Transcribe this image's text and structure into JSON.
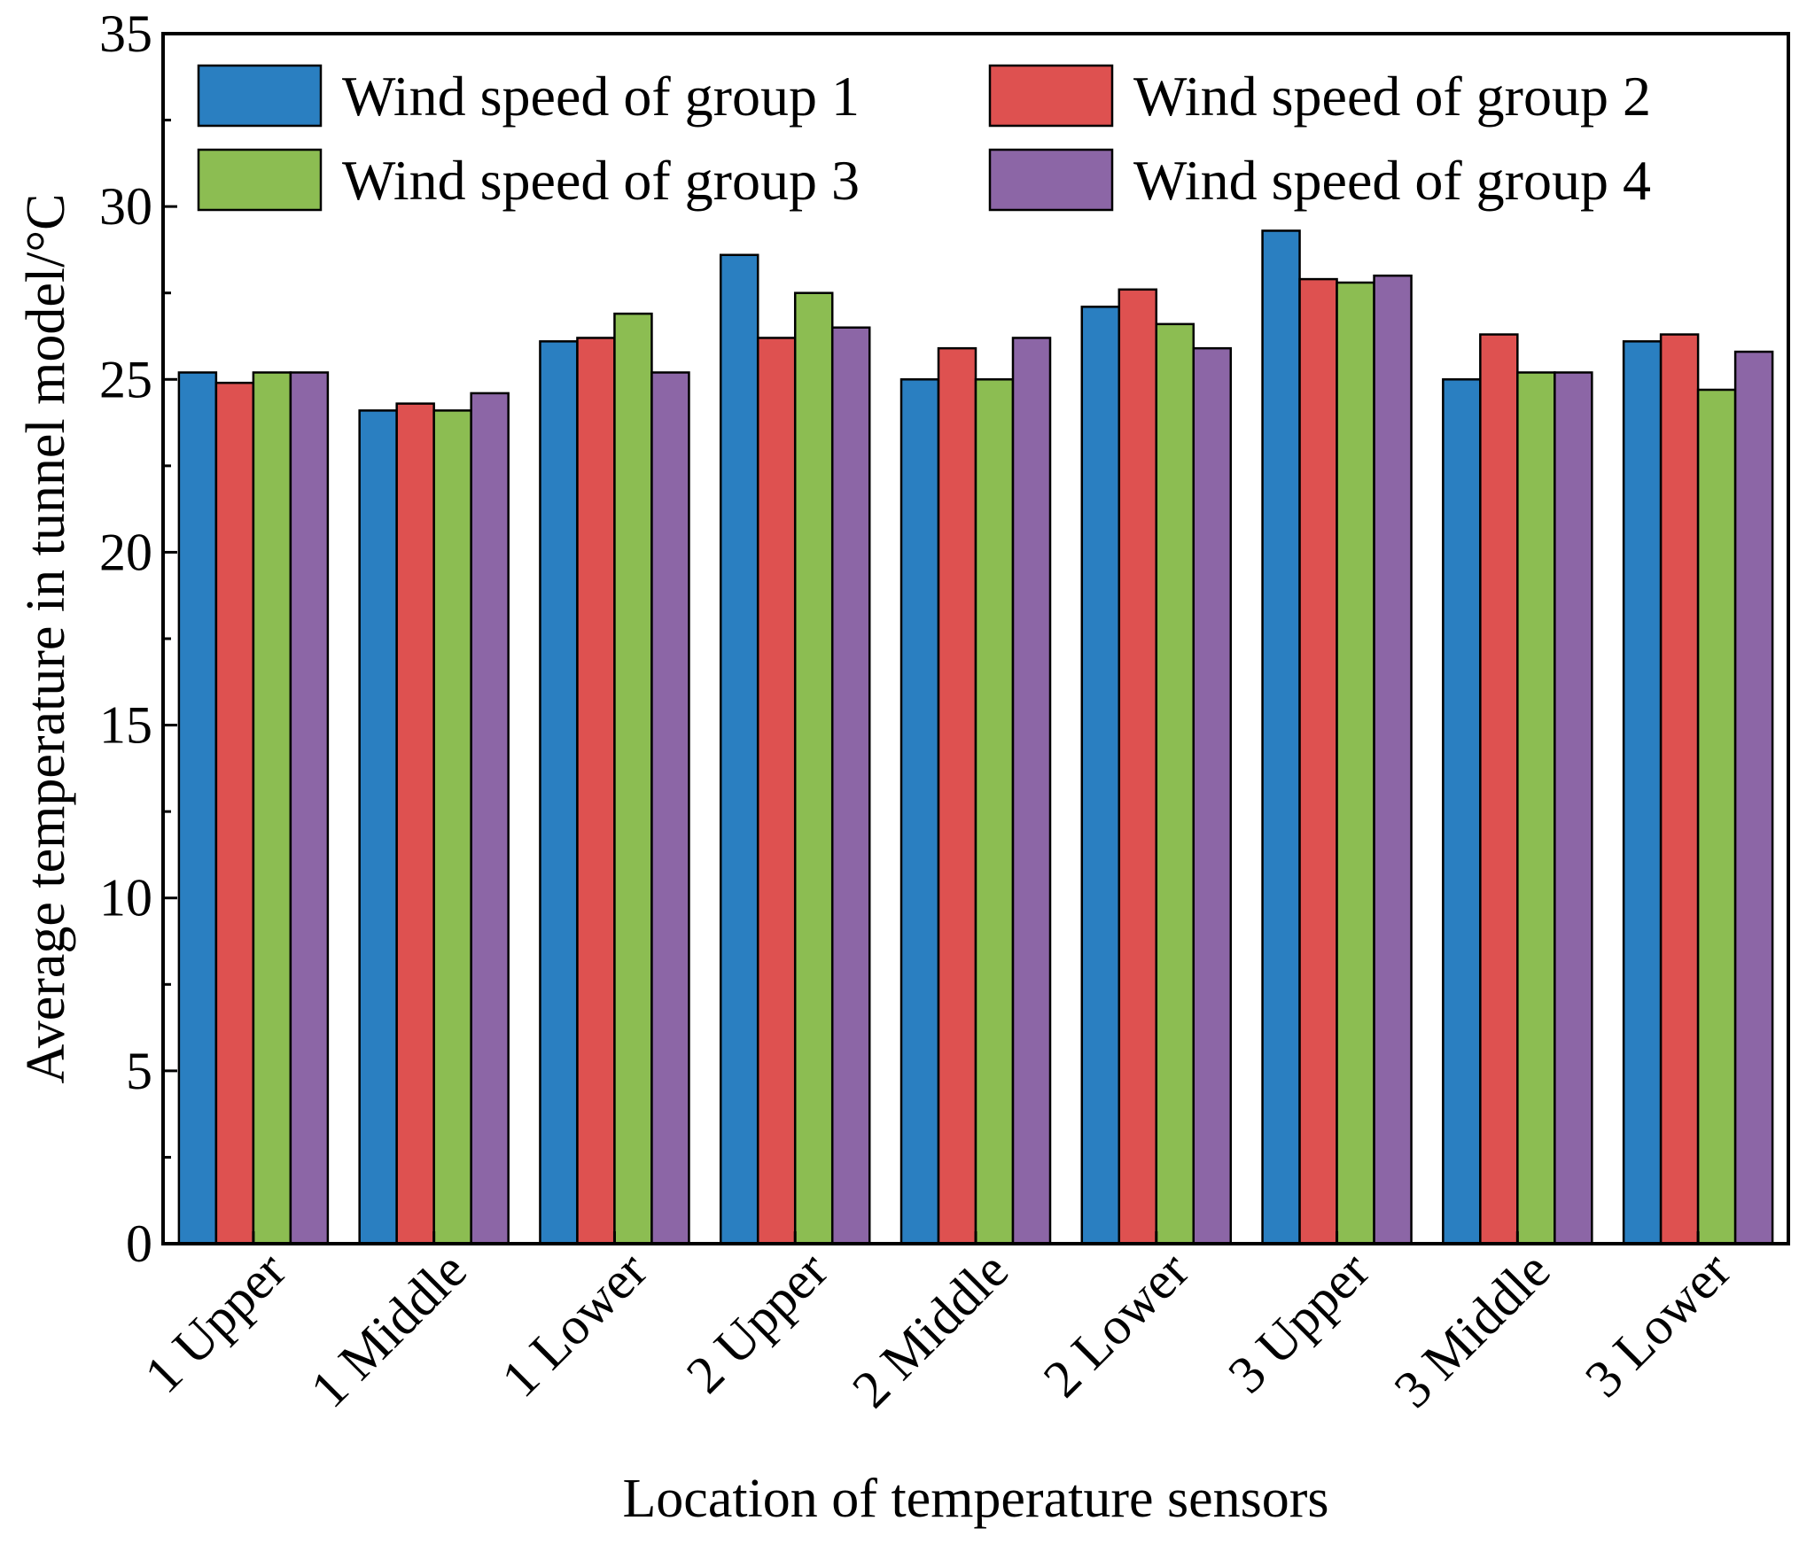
{
  "chart_data": {
    "type": "bar",
    "title": "",
    "xlabel": "Location of temperature sensors",
    "ylabel": "Average temperature in tunnel model/°C",
    "ylim": [
      0,
      35
    ],
    "yticks": [
      0,
      5,
      10,
      15,
      20,
      25,
      30,
      35
    ],
    "categories": [
      "1 Upper",
      "1 Middle",
      "1 Lower",
      "2 Upper",
      "2 Middle",
      "2 Lower",
      "3 Upper",
      "3 Middle",
      "3 Lower"
    ],
    "series": [
      {
        "name": "Wind speed of group 1",
        "color": "#2a7fc1",
        "values": [
          25.2,
          24.1,
          26.1,
          28.6,
          25.0,
          27.1,
          29.3,
          25.0,
          26.1
        ]
      },
      {
        "name": "Wind speed of group 2",
        "color": "#de5150",
        "values": [
          24.9,
          24.3,
          26.2,
          26.2,
          25.9,
          27.6,
          27.9,
          26.3,
          26.3
        ]
      },
      {
        "name": "Wind speed of group 3",
        "color": "#8cbd52",
        "values": [
          25.2,
          24.1,
          26.9,
          27.5,
          25.0,
          26.6,
          27.8,
          25.2,
          24.7
        ]
      },
      {
        "name": "Wind speed of group 4",
        "color": "#8c66a6",
        "values": [
          25.2,
          24.6,
          25.2,
          26.5,
          26.2,
          25.9,
          28.0,
          25.2,
          25.8
        ]
      }
    ],
    "legend": "top, 2 columns",
    "grid": false
  }
}
